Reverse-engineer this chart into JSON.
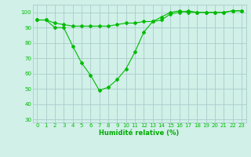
{
  "x": [
    0,
    1,
    2,
    3,
    4,
    5,
    6,
    7,
    8,
    9,
    10,
    11,
    12,
    13,
    14,
    15,
    16,
    17,
    18,
    19,
    20,
    21,
    22,
    23
  ],
  "line1": [
    95,
    95,
    90,
    90,
    78,
    67,
    59,
    49,
    51,
    56,
    63,
    74,
    87,
    94,
    97,
    100,
    101,
    100,
    100,
    100,
    100,
    100,
    101,
    101
  ],
  "line2": [
    95,
    95,
    93,
    92,
    91,
    91,
    91,
    91,
    91,
    92,
    93,
    93,
    94,
    94,
    95,
    99,
    100,
    101,
    100,
    100,
    100,
    100,
    101,
    101
  ],
  "line_color": "#00bb00",
  "bg_color": "#d0f0e8",
  "grid_color": "#aacccc",
  "xlabel": "Humidité relative (%)",
  "xlabel_color": "#00aa00",
  "yticks": [
    30,
    40,
    50,
    60,
    70,
    80,
    90,
    100
  ],
  "xticks": [
    0,
    1,
    2,
    3,
    4,
    5,
    6,
    7,
    8,
    9,
    10,
    11,
    12,
    13,
    14,
    15,
    16,
    17,
    18,
    19,
    20,
    21,
    22,
    23
  ],
  "ylim": [
    28,
    105
  ],
  "xlim": [
    -0.5,
    23.5
  ],
  "marker": "D",
  "markersize": 2,
  "linewidth": 0.8
}
